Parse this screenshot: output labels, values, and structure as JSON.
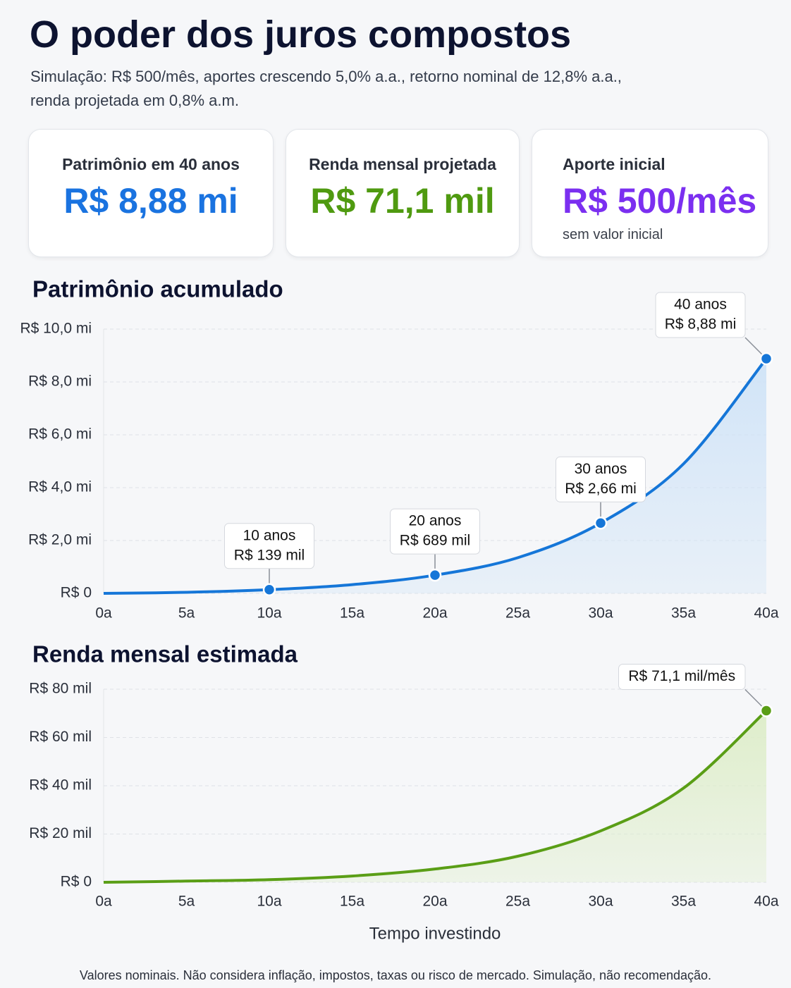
{
  "header": {
    "title": "O poder dos juros compostos",
    "subtitle": [
      "Simulação: R$ 500/mês, aportes crescendo 5,0% a.a., retorno nominal de 12,8% a.a.,",
      "renda projetada em 0,8% a.m."
    ]
  },
  "cards": [
    {
      "label": "Patrimônio em 40 anos",
      "value": "R$ 8,88 mi",
      "color": "#1a73e0"
    },
    {
      "label": "Renda mensal projetada",
      "value": "R$ 71,1 mil",
      "color": "#4f9a10"
    },
    {
      "label": "Aporte inicial",
      "value": "R$ 500/mês",
      "note": "sem valor inicial",
      "color": "#7b2ff0"
    }
  ],
  "chart_data": [
    {
      "type": "area",
      "title": "Patrimônio acumulado",
      "color": "#1576d8",
      "fill": "#cfe3f7",
      "x": [
        0,
        5,
        10,
        15,
        20,
        25,
        30,
        35,
        40
      ],
      "values": [
        0,
        0.04,
        0.139,
        0.33,
        0.689,
        1.35,
        2.66,
        4.9,
        8.88
      ],
      "xlim": [
        0,
        40
      ],
      "xticks": [
        {
          "value": 0,
          "label": "0a"
        },
        {
          "value": 5,
          "label": "5a"
        },
        {
          "value": 10,
          "label": "10a"
        },
        {
          "value": 15,
          "label": "15a"
        },
        {
          "value": 20,
          "label": "20a"
        },
        {
          "value": 25,
          "label": "25a"
        },
        {
          "value": 30,
          "label": "30a"
        },
        {
          "value": 35,
          "label": "35a"
        },
        {
          "value": 40,
          "label": "40a"
        }
      ],
      "ylim": [
        0,
        10
      ],
      "yticks": [
        {
          "value": 0,
          "label": "R$ 0"
        },
        {
          "value": 2,
          "label": "R$ 2,0 mi"
        },
        {
          "value": 4,
          "label": "R$ 4,0 mi"
        },
        {
          "value": 6,
          "label": "R$ 6,0 mi"
        },
        {
          "value": 8,
          "label": "R$ 8,0 mi"
        },
        {
          "value": 10,
          "label": "R$ 10,0 mi"
        }
      ],
      "grid": true,
      "annotations": [
        {
          "x": 10,
          "y": 0.139,
          "label": [
            "10 anos",
            "R$ 139 mil"
          ]
        },
        {
          "x": 20,
          "y": 0.689,
          "label": [
            "20 anos",
            "R$ 689 mil"
          ]
        },
        {
          "x": 30,
          "y": 2.66,
          "label": [
            "30 anos",
            "R$ 2,66 mi"
          ]
        },
        {
          "x": 40,
          "y": 8.88,
          "label": [
            "40 anos",
            "R$ 8,88 mi"
          ]
        }
      ]
    },
    {
      "type": "area",
      "title": "Renda mensal estimada",
      "xlabel": "Tempo investindo",
      "color": "#5a9e16",
      "fill": "#ddedc8",
      "x": [
        0,
        5,
        10,
        15,
        20,
        25,
        30,
        35,
        40
      ],
      "values": [
        0,
        0.5,
        1.1,
        2.6,
        5.5,
        10.8,
        21.3,
        39,
        71.1
      ],
      "xlim": [
        0,
        40
      ],
      "xticks": [
        {
          "value": 0,
          "label": "0a"
        },
        {
          "value": 5,
          "label": "5a"
        },
        {
          "value": 10,
          "label": "10a"
        },
        {
          "value": 15,
          "label": "15a"
        },
        {
          "value": 20,
          "label": "20a"
        },
        {
          "value": 25,
          "label": "25a"
        },
        {
          "value": 30,
          "label": "30a"
        },
        {
          "value": 35,
          "label": "35a"
        },
        {
          "value": 40,
          "label": "40a"
        }
      ],
      "ylim": [
        0,
        80
      ],
      "yticks": [
        {
          "value": 0,
          "label": "R$ 0"
        },
        {
          "value": 20,
          "label": "R$ 20 mil"
        },
        {
          "value": 40,
          "label": "R$ 40 mil"
        },
        {
          "value": 60,
          "label": "R$ 60 mil"
        },
        {
          "value": 80,
          "label": "R$ 80 mil"
        }
      ],
      "grid": true,
      "annotations": [
        {
          "x": 40,
          "y": 71.1,
          "label": [
            "R$ 71,1 mil/mês"
          ]
        }
      ]
    }
  ],
  "footnote": "Valores nominais. Não considera inflação, impostos, taxas ou risco de mercado. Simulação, não recomendação."
}
